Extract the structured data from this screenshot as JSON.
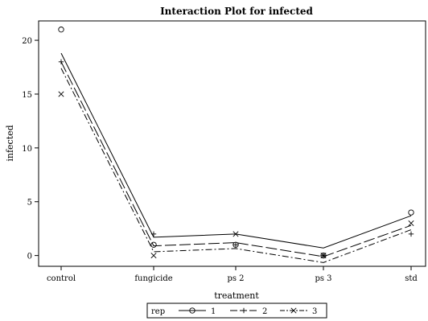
{
  "chart_data": {
    "type": "line",
    "title": "Interaction Plot for infected",
    "xlabel": "treatment",
    "ylabel": "infected",
    "categories": [
      "control",
      "fungicide",
      "ps 2",
      "ps 3",
      "std"
    ],
    "yticks": [
      0,
      5,
      10,
      15,
      20
    ],
    "ylim": [
      -1,
      21.8
    ],
    "grid": false,
    "legend": {
      "title": "rep",
      "placement": "bottom"
    },
    "series": [
      {
        "name": "1",
        "marker": "circle",
        "dash": "solid",
        "points": [
          21,
          1,
          1,
          0,
          4
        ],
        "mean_line": [
          18.8,
          1.7,
          2.0,
          0.7,
          3.7
        ]
      },
      {
        "name": "2",
        "marker": "plus",
        "dash": "long-dash",
        "points": [
          18,
          2,
          1,
          0,
          2
        ],
        "mean_line": [
          18.0,
          0.9,
          1.2,
          -0.1,
          2.8
        ]
      },
      {
        "name": "3",
        "marker": "x",
        "dash": "dash-dot",
        "points": [
          15,
          0,
          2,
          0,
          3
        ],
        "mean_line": [
          17.4,
          0.35,
          0.65,
          -0.65,
          2.4
        ]
      }
    ]
  }
}
